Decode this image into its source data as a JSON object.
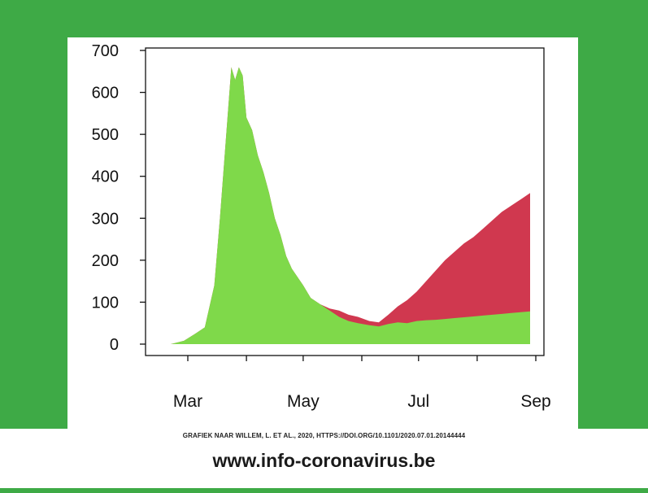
{
  "chart_data": {
    "type": "area",
    "title": "",
    "xlabel": "",
    "ylabel": "",
    "ylim": [
      0,
      700
    ],
    "yticks": [
      0,
      100,
      200,
      300,
      400,
      500,
      600,
      700
    ],
    "xticks": [
      "Mar",
      "May",
      "Jul",
      "Sep"
    ],
    "x": [
      "02-21",
      "02-28",
      "03-05",
      "03-10",
      "03-15",
      "03-18",
      "03-21",
      "03-24",
      "03-26",
      "03-28",
      "03-30",
      "04-01",
      "04-04",
      "04-07",
      "04-10",
      "04-13",
      "04-16",
      "04-19",
      "04-22",
      "04-25",
      "04-28",
      "05-01",
      "05-05",
      "05-10",
      "05-15",
      "05-20",
      "05-25",
      "05-30",
      "06-05",
      "06-10",
      "06-15",
      "06-20",
      "06-25",
      "06-30",
      "07-05",
      "07-10",
      "07-15",
      "07-20",
      "07-25",
      "07-30",
      "08-04",
      "08-09",
      "08-14",
      "08-19",
      "08-24",
      "08-29"
    ],
    "series": [
      {
        "color": "#7fd94a",
        "values": [
          0,
          8,
          25,
          40,
          140,
          300,
          480,
          660,
          630,
          660,
          640,
          540,
          510,
          450,
          410,
          360,
          300,
          260,
          210,
          180,
          160,
          140,
          110,
          95,
          80,
          65,
          55,
          50,
          45,
          42,
          48,
          52,
          50,
          55,
          57,
          58,
          60,
          62,
          64,
          66,
          68,
          70,
          72,
          74,
          76,
          78
        ]
      },
      {
        "color": "#d0384f",
        "values": [
          0,
          8,
          25,
          40,
          140,
          300,
          480,
          660,
          630,
          660,
          640,
          540,
          510,
          450,
          410,
          360,
          300,
          260,
          210,
          180,
          160,
          140,
          110,
          95,
          85,
          80,
          70,
          65,
          55,
          52,
          70,
          90,
          105,
          125,
          150,
          175,
          200,
          220,
          240,
          255,
          275,
          295,
          315,
          330,
          345,
          360
        ]
      }
    ]
  },
  "source_note": "GRAFIEK NAAR WILLEM, L. ET AL., 2020, HTTPS://DOI.ORG/10.1101/2020.07.01.20144444",
  "website": "www.info-coronavirus.be",
  "colors": {
    "background_green": "#3eaa46",
    "total_red": "#d0384f",
    "base_green": "#7fd94a"
  }
}
